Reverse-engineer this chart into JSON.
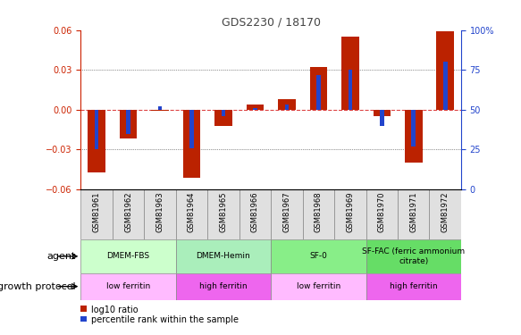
{
  "title": "GDS2230 / 18170",
  "samples": [
    "GSM81961",
    "GSM81962",
    "GSM81963",
    "GSM81964",
    "GSM81965",
    "GSM81966",
    "GSM81967",
    "GSM81968",
    "GSM81969",
    "GSM81970",
    "GSM81971",
    "GSM81972"
  ],
  "log10_ratio": [
    -0.047,
    -0.022,
    -0.001,
    -0.051,
    -0.012,
    0.004,
    0.008,
    0.032,
    0.055,
    -0.005,
    -0.04,
    0.059
  ],
  "percentile_rank": [
    25,
    35,
    52,
    26,
    46,
    51,
    53,
    72,
    75,
    40,
    27,
    80
  ],
  "ylim_left": [
    -0.06,
    0.06
  ],
  "ylim_right": [
    0,
    100
  ],
  "yticks_left": [
    -0.06,
    -0.03,
    0,
    0.03,
    0.06
  ],
  "yticks_right": [
    0,
    25,
    50,
    75,
    100
  ],
  "bar_color": "#bb2200",
  "dot_color": "#2244cc",
  "zero_line_color": "#dd4444",
  "grid_color": "#333333",
  "agent_groups": [
    {
      "label": "DMEM-FBS",
      "start": 0,
      "end": 3,
      "color": "#ccffcc"
    },
    {
      "label": "DMEM-Hemin",
      "start": 3,
      "end": 6,
      "color": "#aaeebb"
    },
    {
      "label": "SF-0",
      "start": 6,
      "end": 9,
      "color": "#88ee88"
    },
    {
      "label": "SF-FAC (ferric ammonium\ncitrate)",
      "start": 9,
      "end": 12,
      "color": "#66dd66"
    }
  ],
  "protocol_groups": [
    {
      "label": "low ferritin",
      "start": 0,
      "end": 3,
      "color": "#ffbbff"
    },
    {
      "label": "high ferritin",
      "start": 3,
      "end": 6,
      "color": "#ee66ee"
    },
    {
      "label": "low ferritin",
      "start": 6,
      "end": 9,
      "color": "#ffbbff"
    },
    {
      "label": "high ferritin",
      "start": 9,
      "end": 12,
      "color": "#ee66ee"
    }
  ],
  "agent_label": "agent",
  "protocol_label": "growth protocol",
  "legend_log10": "log10 ratio",
  "legend_pct": "percentile rank within the sample",
  "title_color": "#444444",
  "left_axis_color": "#cc2200",
  "right_axis_color": "#2244cc"
}
